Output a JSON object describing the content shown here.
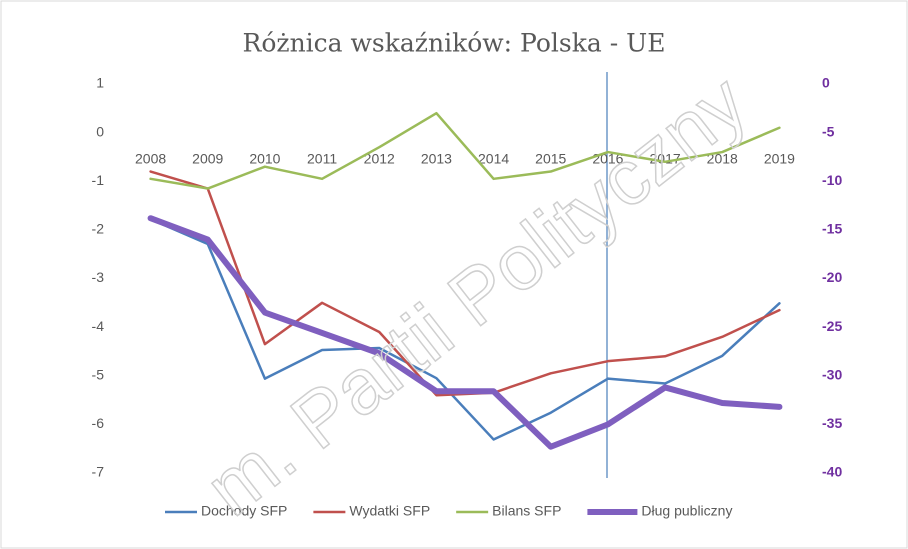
{
  "chart_data": {
    "type": "line",
    "title": "Różnica wskaźników: Polska - UE",
    "watermark": "m. Partii Polityczny",
    "categories": [
      "2008",
      "2009",
      "2010",
      "2011",
      "2012",
      "2013",
      "2014",
      "2015",
      "2016",
      "2017",
      "2018",
      "2019"
    ],
    "series": [
      {
        "name": "Dochody SFP",
        "color": "#4a7ebb",
        "values": [
          -1.78,
          -2.29,
          -5.06,
          -4.47,
          -4.43,
          -5.05,
          -6.31,
          -5.76,
          -5.06,
          -5.16,
          -4.59,
          -3.51
        ]
      },
      {
        "name": "Wydatki SFP",
        "color": "#c0504d",
        "values": [
          -0.8,
          -1.15,
          -4.35,
          -3.5,
          -4.1,
          -5.4,
          -5.35,
          -4.95,
          -4.7,
          -4.6,
          -4.2,
          -3.65
        ]
      },
      {
        "name": "Bilans SFP",
        "color": "#9bbb59",
        "values": [
          -0.95,
          -1.15,
          -0.7,
          -0.95,
          -0.3,
          0.4,
          -0.95,
          -0.8,
          -0.4,
          -0.6,
          -0.4,
          0.1
        ]
      },
      {
        "name": "Dług publiczny",
        "color": "#7f5fbf",
        "axis": "y2",
        "values": [
          -13.8,
          -16,
          -23.5,
          -25.6,
          -27.7,
          -31.6,
          -31.6,
          -37.3,
          -35,
          -31.2,
          -32.8,
          -33.2
        ]
      }
    ],
    "ylim": [
      -7,
      1
    ],
    "yticks": [
      1,
      0,
      -1,
      -2,
      -3,
      -4,
      -5,
      -6,
      -7
    ],
    "y2lim": [
      -40,
      0
    ],
    "y2ticks": [
      0,
      -5,
      -10,
      -15,
      -20,
      -25,
      -30,
      -35,
      -40
    ],
    "legend": "bottom"
  }
}
